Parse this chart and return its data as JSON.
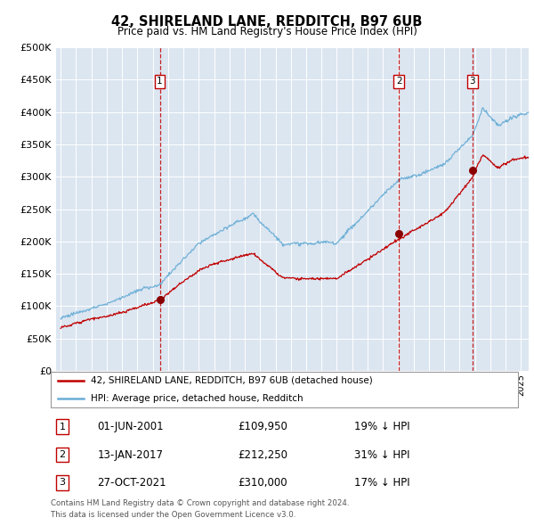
{
  "title": "42, SHIRELAND LANE, REDDITCH, B97 6UB",
  "subtitle": "Price paid vs. HM Land Registry's House Price Index (HPI)",
  "legend_entry1": "42, SHIRELAND LANE, REDDITCH, B97 6UB (detached house)",
  "legend_entry2": "HPI: Average price, detached house, Redditch",
  "footer1": "Contains HM Land Registry data © Crown copyright and database right 2024.",
  "footer2": "This data is licensed under the Open Government Licence v3.0.",
  "transactions": [
    {
      "label": "1",
      "date_num": 2001.46,
      "price": 109950,
      "date_str": "01-JUN-2001",
      "pct": "19% ↓ HPI"
    },
    {
      "label": "2",
      "date_num": 2017.04,
      "price": 212250,
      "date_str": "13-JAN-2017",
      "pct": "31% ↓ HPI"
    },
    {
      "label": "3",
      "date_num": 2021.83,
      "price": 310000,
      "date_str": "27-OCT-2021",
      "pct": "17% ↓ HPI"
    }
  ],
  "hpi_color": "#6baed6",
  "price_color": "#c00000",
  "dashed_color": "#c00000",
  "plot_bg": "#dce6f1",
  "ylim": [
    0,
    500000
  ],
  "yticks": [
    0,
    50000,
    100000,
    150000,
    200000,
    250000,
    300000,
    350000,
    400000,
    450000,
    500000
  ],
  "xlim_start": 1994.7,
  "xlim_end": 2025.5
}
